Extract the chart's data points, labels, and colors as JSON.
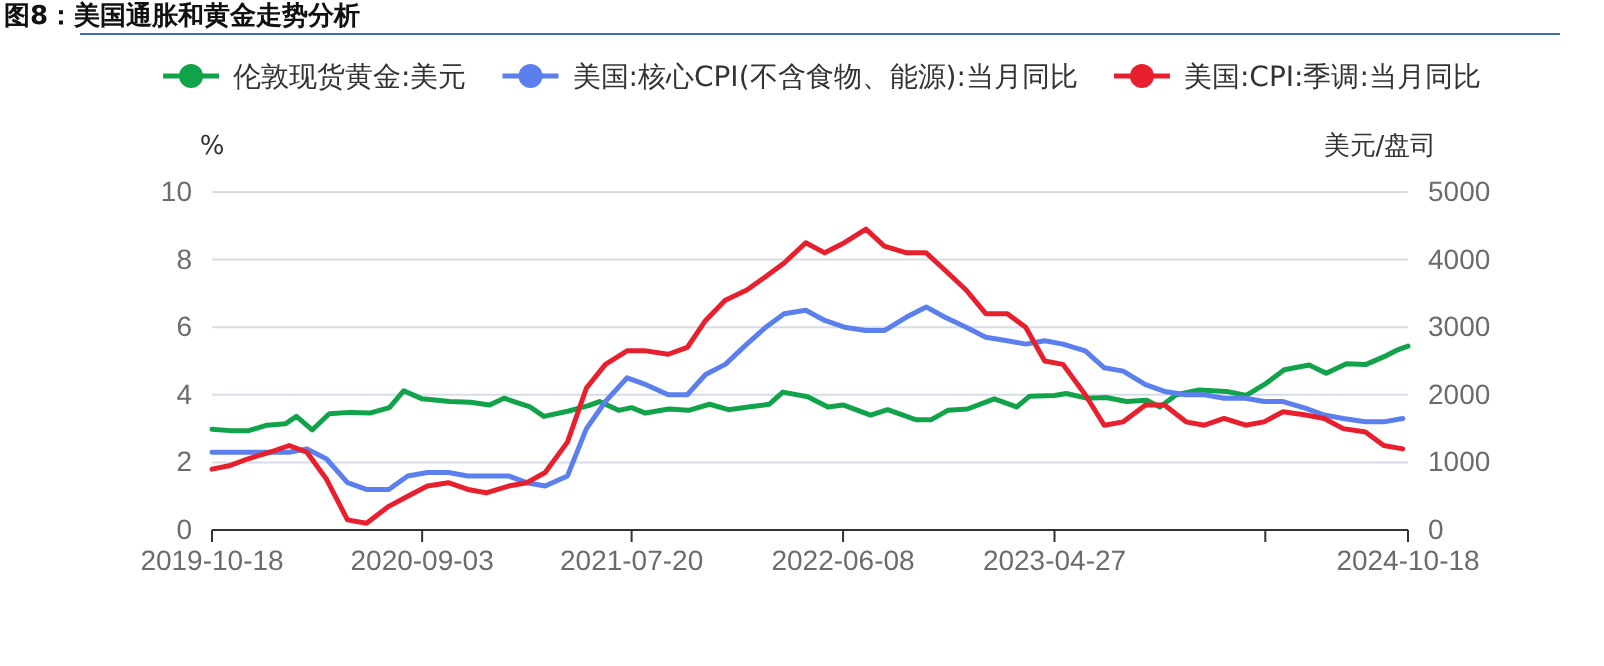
{
  "chart_data": {
    "type": "line",
    "title": "图8：美国通胀和黄金走势分析",
    "ylabel": "%",
    "y2label": "美元/盘司",
    "xlim": [
      "2019-10-18",
      "2024-10-18"
    ],
    "xticks": [
      {
        "value": "2019-10-18",
        "label": "2019-10-18"
      },
      {
        "value": "2020-09-03",
        "label": "2020-09-03"
      },
      {
        "value": "2021-07-20",
        "label": "2021-07-20"
      },
      {
        "value": "2022-06-08",
        "label": "2022-06-08"
      },
      {
        "value": "2023-04-27",
        "label": "2023-04-27"
      },
      {
        "value": "2024-03-14",
        "label": null
      },
      {
        "value": "2024-10-18",
        "label": "2024-10-18"
      }
    ],
    "ylim": [
      0,
      10
    ],
    "yticks": [
      0,
      2,
      4,
      6,
      8,
      10
    ],
    "y2lim": [
      0,
      5000
    ],
    "y2ticks": [
      0,
      1000,
      2000,
      3000,
      4000,
      5000
    ],
    "grid": "y",
    "legend": "top",
    "marker": "none",
    "line_style": "solid",
    "series": [
      {
        "name": "伦敦现货黄金:美元",
        "color": "#10a34a",
        "axis": "y2",
        "x": [
          "2019-10-18",
          "2019-11-15",
          "2019-12-13",
          "2020-01-10",
          "2020-02-07",
          "2020-02-24",
          "2020-03-19",
          "2020-04-14",
          "2020-05-15",
          "2020-06-15",
          "2020-07-15",
          "2020-08-06",
          "2020-09-03",
          "2020-10-15",
          "2020-11-16",
          "2020-12-15",
          "2021-01-06",
          "2021-02-15",
          "2021-03-08",
          "2021-04-15",
          "2021-05-15",
          "2021-06-01",
          "2021-06-30",
          "2021-07-20",
          "2021-08-10",
          "2021-09-15",
          "2021-10-15",
          "2021-11-16",
          "2021-12-15",
          "2022-01-14",
          "2022-02-15",
          "2022-03-08",
          "2022-04-15",
          "2022-05-16",
          "2022-06-08",
          "2022-07-20",
          "2022-08-15",
          "2022-09-28",
          "2022-10-20",
          "2022-11-15",
          "2022-12-15",
          "2023-01-25",
          "2023-02-28",
          "2023-03-20",
          "2023-04-27",
          "2023-05-15",
          "2023-06-15",
          "2023-07-15",
          "2023-08-15",
          "2023-09-15",
          "2023-10-05",
          "2023-10-30",
          "2023-12-04",
          "2024-01-15",
          "2024-02-14",
          "2024-03-14",
          "2024-04-12",
          "2024-05-20",
          "2024-06-15",
          "2024-07-16",
          "2024-08-15",
          "2024-09-15",
          "2024-10-01",
          "2024-10-18"
        ],
        "values": [
          1490,
          1470,
          1470,
          1550,
          1570,
          1680,
          1480,
          1720,
          1740,
          1730,
          1810,
          2060,
          1940,
          1900,
          1890,
          1850,
          1950,
          1820,
          1680,
          1760,
          1840,
          1900,
          1770,
          1810,
          1730,
          1790,
          1770,
          1860,
          1780,
          1820,
          1860,
          2040,
          1970,
          1820,
          1850,
          1700,
          1780,
          1630,
          1630,
          1770,
          1790,
          1940,
          1820,
          1980,
          1990,
          2020,
          1950,
          1960,
          1900,
          1920,
          1820,
          2000,
          2070,
          2050,
          1990,
          2160,
          2370,
          2440,
          2320,
          2460,
          2450,
          2580,
          2660,
          2720
        ]
      },
      {
        "name": "美国:核心CPI(不含食物、能源):当月同比",
        "color": "#5b7fec",
        "x": [
          "2019-10-18",
          "2019-11-13",
          "2019-12-11",
          "2020-01-14",
          "2020-02-13",
          "2020-03-11",
          "2020-04-10",
          "2020-05-12",
          "2020-06-10",
          "2020-07-14",
          "2020-08-12",
          "2020-09-11",
          "2020-10-13",
          "2020-11-12",
          "2020-12-10",
          "2021-01-13",
          "2021-02-10",
          "2021-03-10",
          "2021-04-13",
          "2021-05-12",
          "2021-06-10",
          "2021-07-13",
          "2021-08-11",
          "2021-09-14",
          "2021-10-13",
          "2021-11-10",
          "2021-12-10",
          "2022-01-12",
          "2022-02-10",
          "2022-03-10",
          "2022-04-12",
          "2022-05-11",
          "2022-06-10",
          "2022-07-13",
          "2022-08-10",
          "2022-09-13",
          "2022-10-13",
          "2022-11-10",
          "2022-12-13",
          "2023-01-12",
          "2023-02-14",
          "2023-03-14",
          "2023-04-12",
          "2023-05-10",
          "2023-06-13",
          "2023-07-12",
          "2023-08-10",
          "2023-09-13",
          "2023-10-12",
          "2023-11-14",
          "2023-12-12",
          "2024-01-11",
          "2024-02-13",
          "2024-03-12",
          "2024-04-10",
          "2024-05-15",
          "2024-06-12",
          "2024-07-11",
          "2024-08-14",
          "2024-09-11",
          "2024-10-10"
        ],
        "values": [
          2.3,
          2.3,
          2.3,
          2.3,
          2.3,
          2.4,
          2.1,
          1.4,
          1.2,
          1.2,
          1.6,
          1.7,
          1.7,
          1.6,
          1.6,
          1.6,
          1.4,
          1.3,
          1.6,
          3.0,
          3.8,
          4.5,
          4.3,
          4.0,
          4.0,
          4.6,
          4.9,
          5.5,
          6.0,
          6.4,
          6.5,
          6.2,
          6.0,
          5.9,
          5.9,
          6.3,
          6.6,
          6.3,
          6.0,
          5.7,
          5.6,
          5.5,
          5.6,
          5.5,
          5.3,
          4.8,
          4.7,
          4.3,
          4.1,
          4.0,
          4.0,
          3.9,
          3.9,
          3.8,
          3.8,
          3.6,
          3.4,
          3.3,
          3.2,
          3.2,
          3.3
        ]
      },
      {
        "name": "美国:CPI:季调:当月同比",
        "color": "#e8202e",
        "x": [
          "2019-10-18",
          "2019-11-13",
          "2019-12-11",
          "2020-01-14",
          "2020-02-13",
          "2020-03-11",
          "2020-04-10",
          "2020-05-12",
          "2020-06-10",
          "2020-07-14",
          "2020-08-12",
          "2020-09-11",
          "2020-10-13",
          "2020-11-12",
          "2020-12-10",
          "2021-01-13",
          "2021-02-10",
          "2021-03-10",
          "2021-04-13",
          "2021-05-12",
          "2021-06-10",
          "2021-07-13",
          "2021-08-11",
          "2021-09-14",
          "2021-10-13",
          "2021-11-10",
          "2021-12-10",
          "2022-01-12",
          "2022-02-10",
          "2022-03-10",
          "2022-04-12",
          "2022-05-11",
          "2022-06-10",
          "2022-07-13",
          "2022-08-10",
          "2022-09-13",
          "2022-10-13",
          "2022-11-10",
          "2022-12-13",
          "2023-01-12",
          "2023-02-14",
          "2023-03-14",
          "2023-04-12",
          "2023-05-10",
          "2023-06-13",
          "2023-07-12",
          "2023-08-10",
          "2023-09-13",
          "2023-10-12",
          "2023-11-14",
          "2023-12-12",
          "2024-01-11",
          "2024-02-13",
          "2024-03-12",
          "2024-04-10",
          "2024-05-15",
          "2024-06-12",
          "2024-07-11",
          "2024-08-14",
          "2024-09-11",
          "2024-10-10"
        ],
        "values": [
          1.8,
          1.9,
          2.1,
          2.3,
          2.5,
          2.3,
          1.5,
          0.3,
          0.2,
          0.7,
          1.0,
          1.3,
          1.4,
          1.2,
          1.1,
          1.3,
          1.4,
          1.7,
          2.6,
          4.2,
          4.9,
          5.3,
          5.3,
          5.2,
          5.4,
          6.2,
          6.8,
          7.1,
          7.5,
          7.9,
          8.5,
          8.2,
          8.5,
          8.9,
          8.4,
          8.2,
          8.2,
          7.7,
          7.1,
          6.4,
          6.4,
          6.0,
          5.0,
          4.9,
          4.0,
          3.1,
          3.2,
          3.7,
          3.7,
          3.2,
          3.1,
          3.3,
          3.1,
          3.2,
          3.5,
          3.4,
          3.3,
          3.0,
          2.9,
          2.5,
          2.4
        ]
      }
    ]
  }
}
